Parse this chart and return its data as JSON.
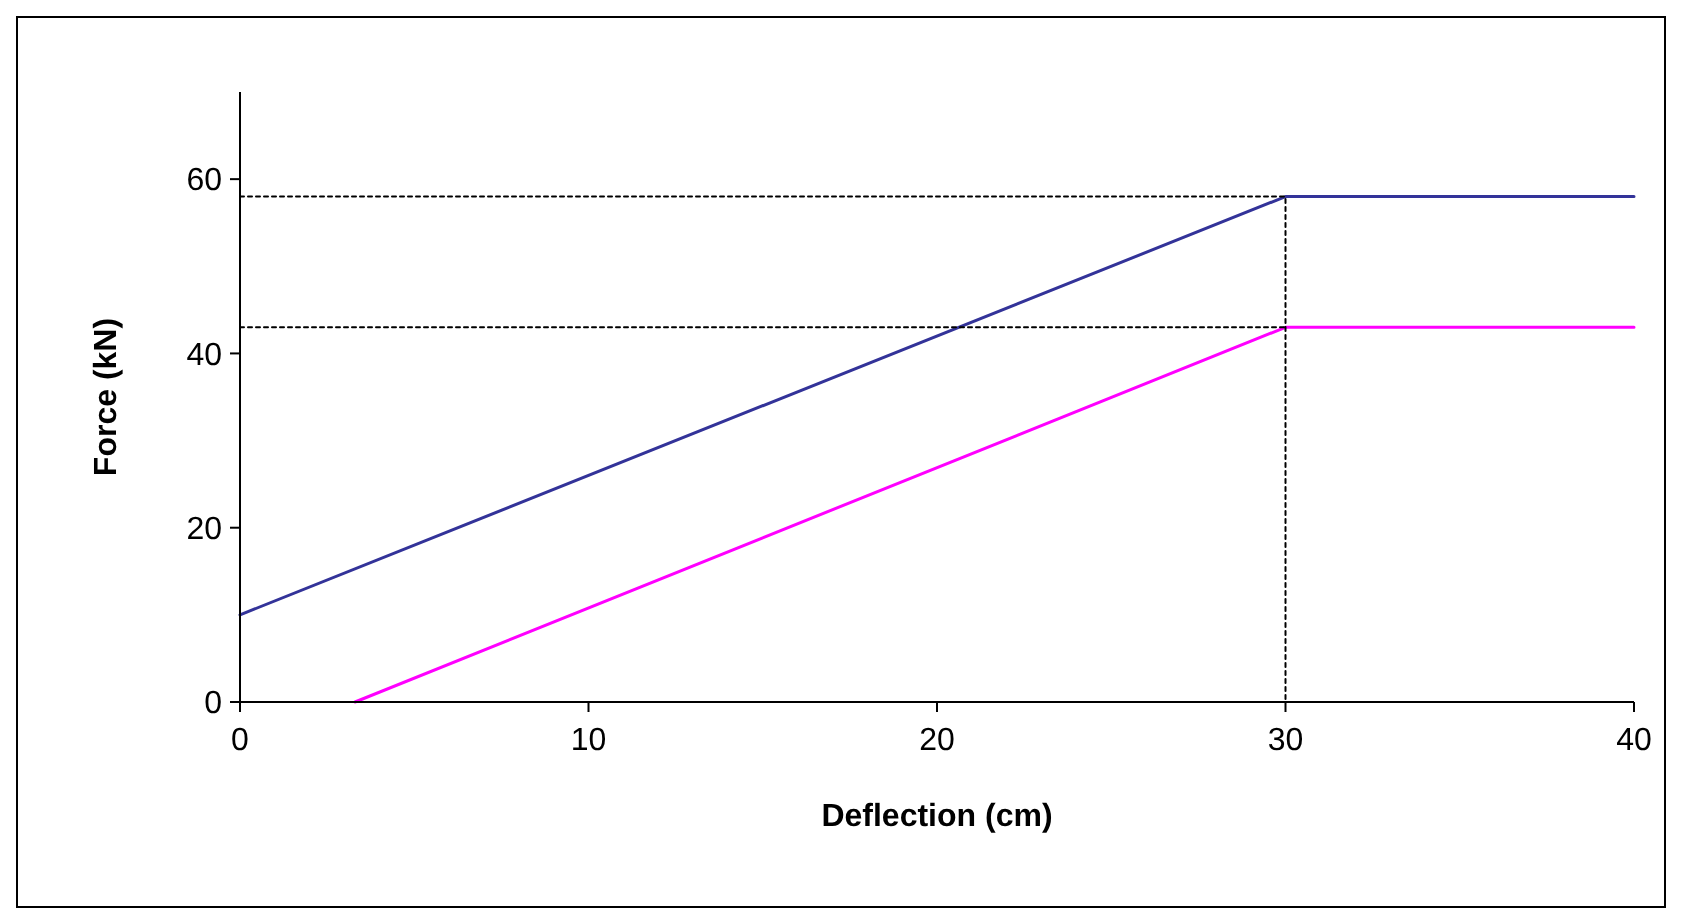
{
  "chart_data": {
    "type": "line",
    "xlabel": "Deflection  (cm)",
    "ylabel": "Force (kN)",
    "xlim": [
      0,
      40
    ],
    "ylim": [
      0,
      70
    ],
    "xticks": [
      0,
      10,
      20,
      30,
      40
    ],
    "yticks": [
      0,
      20,
      40,
      60
    ],
    "grid": false,
    "series": [
      {
        "color": "#333399",
        "x": [
          0,
          30,
          40
        ],
        "values": [
          10,
          58,
          58
        ],
        "line_style": "solid"
      },
      {
        "color": "#ff00ff",
        "x": [
          3.3,
          30,
          40
        ],
        "values": [
          0,
          43,
          43
        ],
        "line_style": "solid"
      },
      {
        "color": "#000000",
        "x": [
          0,
          30,
          30
        ],
        "values": [
          58,
          58,
          0
        ],
        "line_style": "dotted"
      },
      {
        "color": "#000000",
        "x": [
          0,
          30
        ],
        "values": [
          43,
          43
        ],
        "line_style": "dotted"
      }
    ]
  }
}
